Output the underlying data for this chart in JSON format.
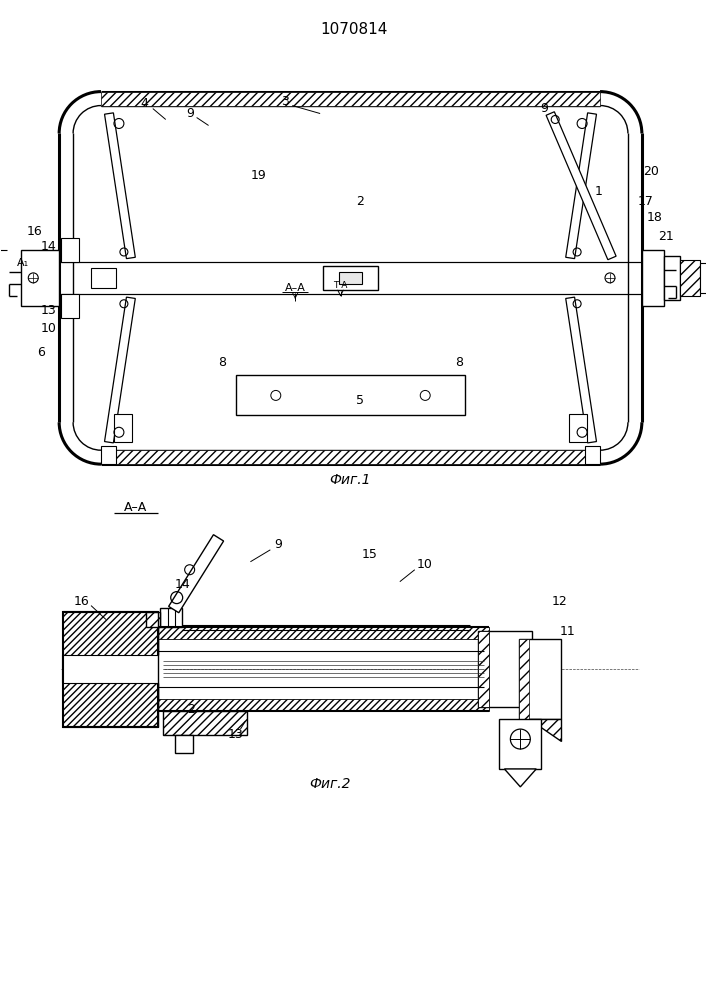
{
  "title": "1070814",
  "bg_color": "#ffffff",
  "line_color": "#000000",
  "fig1_label": "Фиг.1",
  "fig2_label": "Фиг.2",
  "aa_label": "А–А"
}
